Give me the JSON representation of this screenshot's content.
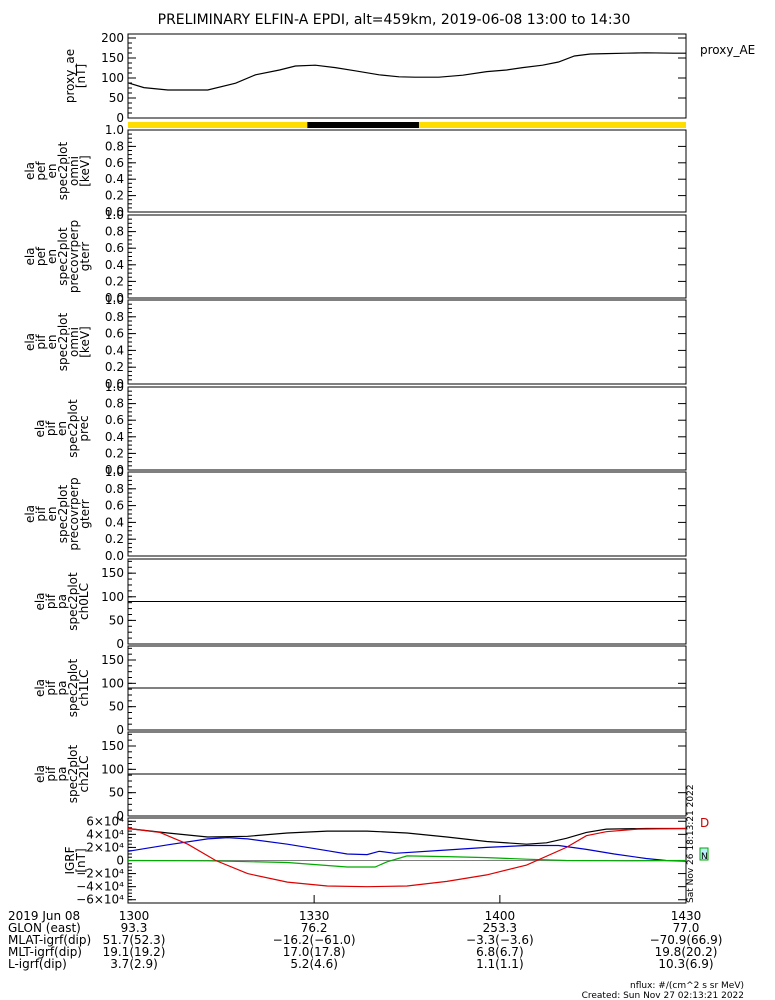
{
  "chart_data": {
    "type": "line",
    "title": "PRELIMINARY ELFIN-A EPDI, alt=459km, 2019-06-08 13:00 to 14:30",
    "xlim": [
      "13:00",
      "14:30"
    ],
    "panels": [
      {
        "id": "proxy_ae",
        "ylabel_lines": [
          "proxy_ae",
          "[nT]"
        ],
        "legend": "proxy_AE",
        "ylim": [
          0,
          210
        ],
        "yticks": [
          "0",
          "50",
          "100",
          "150",
          "200"
        ],
        "series": [
          {
            "color": "#000000",
            "points": [
              [
                0,
                88
              ],
              [
                4,
                76
              ],
              [
                10,
                70
              ],
              [
                20,
                70
              ],
              [
                27,
                87
              ],
              [
                32,
                108
              ],
              [
                38,
                120
              ],
              [
                42,
                130
              ],
              [
                47,
                132
              ],
              [
                52,
                126
              ],
              [
                57,
                118
              ],
              [
                63,
                108
              ],
              [
                68,
                103
              ],
              [
                72,
                102
              ],
              [
                78,
                102
              ],
              [
                84,
                107
              ],
              [
                90,
                116
              ],
              [
                95,
                120
              ],
              [
                99,
                126
              ],
              [
                104,
                132
              ],
              [
                108,
                140
              ],
              [
                112,
                155
              ],
              [
                116,
                160
              ],
              [
                120,
                161
              ],
              [
                125,
                162
              ],
              [
                130,
                163
              ],
              [
                137,
                162
              ],
              [
                140,
                162
              ]
            ]
          }
        ]
      },
      {
        "id": "ela_pef_en_spec2plot_omni",
        "ylabel_lines": [
          "ela",
          "pef",
          "en",
          "spec2plot",
          "omni",
          "[keV]"
        ],
        "ylim": [
          0,
          1
        ],
        "yticks": [
          "0.0",
          "0.2",
          "0.4",
          "0.6",
          "0.8",
          "1.0"
        ]
      },
      {
        "id": "ela_pef_en_spec2plot_precovrperp_gterr",
        "ylabel_lines": [
          "ela",
          "pef",
          "en",
          "spec2plot",
          "precovrperp",
          "gterr"
        ],
        "ylim": [
          0,
          1
        ],
        "yticks": [
          "0.0",
          "0.2",
          "0.4",
          "0.6",
          "0.8",
          "1.0"
        ]
      },
      {
        "id": "ela_pif_en_spec2plot_omni",
        "ylabel_lines": [
          "ela",
          "pif",
          "en",
          "spec2plot",
          "omni",
          "[keV]"
        ],
        "ylim": [
          0,
          1
        ],
        "yticks": [
          "0.0",
          "0.2",
          "0.4",
          "0.6",
          "0.8",
          "1.0"
        ]
      },
      {
        "id": "ela_pif_en_spec2plot_prec",
        "ylabel_lines": [
          "ela",
          "pif",
          "en",
          "spec2plot",
          "prec"
        ],
        "ylim": [
          0,
          1
        ],
        "yticks": [
          "0.0",
          "0.2",
          "0.4",
          "0.6",
          "0.8",
          "1.0"
        ]
      },
      {
        "id": "ela_pif_en_spec2plot_precovrperp_gterr",
        "ylabel_lines": [
          "ela",
          "pif",
          "en",
          "spec2plot",
          "precovrperp",
          "gterr"
        ],
        "ylim": [
          0,
          1
        ],
        "yticks": [
          "0.0",
          "0.2",
          "0.4",
          "0.6",
          "0.8",
          "1.0"
        ]
      },
      {
        "id": "ela_pif_pa_spec2plot_ch0LC",
        "ylabel_lines": [
          "ela",
          "pif",
          "pa",
          "spec2plot",
          "ch0LC"
        ],
        "ylim": [
          0,
          180
        ],
        "yticks": [
          "0",
          "50",
          "100",
          "150"
        ],
        "hline": 90
      },
      {
        "id": "ela_pif_pa_spec2plot_ch1LC",
        "ylabel_lines": [
          "ela",
          "pif",
          "pa",
          "spec2plot",
          "ch1LC"
        ],
        "ylim": [
          0,
          180
        ],
        "yticks": [
          "0",
          "50",
          "100",
          "150"
        ],
        "hline": 90
      },
      {
        "id": "ela_pif_pa_spec2plot_ch2LC",
        "ylabel_lines": [
          "ela",
          "pif",
          "pa",
          "spec2plot",
          "ch2LC"
        ],
        "ylim": [
          0,
          180
        ],
        "yticks": [
          "0",
          "50",
          "100",
          "150"
        ],
        "hline": 90
      },
      {
        "id": "igrf",
        "ylabel_lines": [
          "IGRF",
          "[nT]"
        ],
        "ylim": [
          -65000,
          65000
        ],
        "yticks": [
          "−6×10⁴",
          "−4×10⁴",
          "−2×10⁴",
          "0",
          "2×10⁴",
          "4×10⁴",
          "6×10⁴"
        ],
        "ytick_values": [
          -60000,
          -40000,
          -20000,
          0,
          20000,
          40000,
          60000
        ],
        "series": [
          {
            "color": "#000000",
            "points": [
              [
                0,
                49000
              ],
              [
                10,
                42000
              ],
              [
                20,
                36000
              ],
              [
                30,
                37000
              ],
              [
                40,
                42000
              ],
              [
                50,
                45000
              ],
              [
                60,
                45000
              ],
              [
                70,
                42000
              ],
              [
                80,
                36000
              ],
              [
                90,
                29000
              ],
              [
                100,
                25000
              ],
              [
                105,
                27000
              ],
              [
                110,
                34000
              ],
              [
                115,
                43000
              ],
              [
                120,
                48000
              ],
              [
                130,
                49000
              ],
              [
                140,
                49000
              ]
            ]
          },
          {
            "color": "#0000cc",
            "points": [
              [
                0,
                14000
              ],
              [
                10,
                24000
              ],
              [
                20,
                33000
              ],
              [
                25,
                35000
              ],
              [
                30,
                33000
              ],
              [
                40,
                25000
              ],
              [
                50,
                15000
              ],
              [
                55,
                10000
              ],
              [
                60,
                9000
              ],
              [
                63,
                14000
              ],
              [
                67,
                11000
              ],
              [
                80,
                16000
              ],
              [
                90,
                20000
              ],
              [
                100,
                23000
              ],
              [
                108,
                23000
              ],
              [
                115,
                17000
              ],
              [
                122,
                10000
              ],
              [
                130,
                3000
              ],
              [
                135,
                0
              ],
              [
                140,
                -1000
              ]
            ]
          },
          {
            "color": "#00aa00",
            "points": [
              [
                0,
                0
              ],
              [
                20,
                -400
              ],
              [
                40,
                -3000
              ],
              [
                55,
                -10000
              ],
              [
                62,
                -10000
              ],
              [
                65,
                -2000
              ],
              [
                70,
                7000
              ],
              [
                80,
                6000
              ],
              [
                90,
                4500
              ],
              [
                100,
                2000
              ],
              [
                110,
                0
              ],
              [
                125,
                -400
              ],
              [
                140,
                0
              ]
            ]
          },
          {
            "color": "#dd0000",
            "points": [
              [
                0,
                49000
              ],
              [
                8,
                43000
              ],
              [
                15,
                25000
              ],
              [
                22,
                0
              ],
              [
                30,
                -20000
              ],
              [
                40,
                -33000
              ],
              [
                50,
                -39000
              ],
              [
                60,
                -40000
              ],
              [
                70,
                -39000
              ],
              [
                80,
                -32000
              ],
              [
                90,
                -22000
              ],
              [
                100,
                -7000
              ],
              [
                110,
                20000
              ],
              [
                115,
                38000
              ],
              [
                120,
                44000
              ],
              [
                128,
                48000
              ],
              [
                140,
                49000
              ]
            ]
          }
        ],
        "side_labels": [
          "D",
          "N"
        ]
      }
    ],
    "xaxis_rows": [
      {
        "label": "2019 Jun 08",
        "values": [
          "1300",
          "1330",
          "1400",
          "1430"
        ]
      },
      {
        "label": "GLON (east)",
        "values": [
          "93.3",
          "76.2",
          "253.3",
          "77.0"
        ]
      },
      {
        "label": "MLAT-igrf(dip)",
        "values": [
          "51.7(52.3)",
          "−16.2(−61.0)",
          "−3.3(−3.6)",
          "−70.9(66.9)"
        ]
      },
      {
        "label": "MLT-igrf(dip)",
        "values": [
          "19.1(19.2)",
          "17.0(17.8)",
          "6.8(6.7)",
          "19.8(20.2)"
        ]
      },
      {
        "label": "L-igrf(dip)",
        "values": [
          "3.7(2.9)",
          "5.2(4.6)",
          "1.1(1.1)",
          "10.3(6.9)"
        ]
      }
    ],
    "side_stamp": "Sat Nov 26 18:13:21 2022",
    "footer": [
      "nflux: #/(cm^2 s sr MeV)",
      "Created: Sun Nov 27 02:13:21 2022"
    ]
  },
  "colors": {
    "bar_yellow": "#ffdd00",
    "bar_black": "#000000"
  }
}
